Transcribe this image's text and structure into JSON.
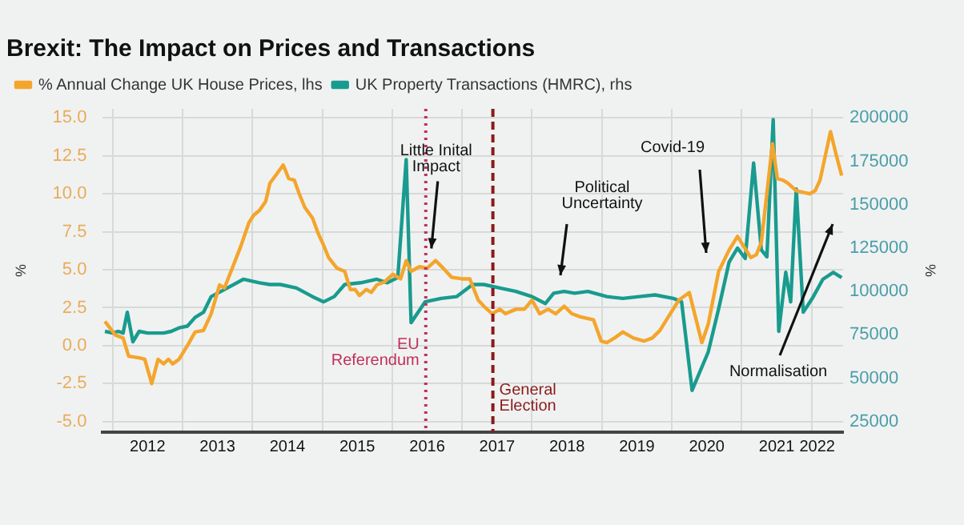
{
  "chart_data": {
    "type": "line",
    "title": "Brexit: The Impact on Prices and Transactions",
    "ylabel": "%",
    "y2label": "%",
    "legend": "top left",
    "grid": true,
    "marker": "none",
    "line_style": "solid",
    "xlim": [
      2011.86,
      2022.45
    ],
    "xticks": [
      {
        "value": 2012,
        "label": null
      },
      {
        "value": 2012.5,
        "label": "2012"
      },
      {
        "value": 2013,
        "label": null
      },
      {
        "value": 2013.5,
        "label": "2013"
      },
      {
        "value": 2014,
        "label": null
      },
      {
        "value": 2014.5,
        "label": "2014"
      },
      {
        "value": 2015,
        "label": null
      },
      {
        "value": 2015.5,
        "label": "2015"
      },
      {
        "value": 2016,
        "label": null
      },
      {
        "value": 2016.5,
        "label": "2016"
      },
      {
        "value": 2017,
        "label": null
      },
      {
        "value": 2017.5,
        "label": "2017"
      },
      {
        "value": 2018,
        "label": null
      },
      {
        "value": 2018.5,
        "label": "2018"
      },
      {
        "value": 2019,
        "label": null
      },
      {
        "value": 2019.5,
        "label": "2019"
      },
      {
        "value": 2020,
        "label": null
      },
      {
        "value": 2020.5,
        "label": "2020"
      },
      {
        "value": 2021,
        "label": null
      },
      {
        "value": 2021.5,
        "label": "2021"
      },
      {
        "value": 2022,
        "label": null
      },
      {
        "value": 2022.08,
        "label": "2022"
      }
    ],
    "ylim": [
      -5.7,
      15.6
    ],
    "yticks": [
      {
        "value": -5,
        "label": "-5.0"
      },
      {
        "value": -2.5,
        "label": "-2.5"
      },
      {
        "value": 0,
        "label": "0.0"
      },
      {
        "value": 2.5,
        "label": "2.5"
      },
      {
        "value": 5,
        "label": "5.0"
      },
      {
        "value": 7.5,
        "label": "7.5"
      },
      {
        "value": 10,
        "label": "10.0"
      },
      {
        "value": 12.5,
        "label": "12.5"
      },
      {
        "value": 15,
        "label": "15.0"
      }
    ],
    "y2lim": [
      18875,
      205250
    ],
    "y2ticks": [
      25000,
      50000,
      75000,
      100000,
      125000,
      150000,
      175000,
      200000
    ],
    "series": [
      {
        "name": "% Annual Change UK House Prices, lhs",
        "color": "#f4a52c",
        "axis": "y",
        "x": [
          2011.89,
          2012.04,
          2012.15,
          2012.23,
          2012.38,
          2012.46,
          2012.56,
          2012.65,
          2012.73,
          2012.8,
          2012.86,
          2012.95,
          2013.07,
          2013.18,
          2013.3,
          2013.41,
          2013.53,
          2013.6,
          2013.72,
          2013.83,
          2013.95,
          2014.02,
          2014.1,
          2014.19,
          2014.25,
          2014.33,
          2014.44,
          2014.52,
          2014.6,
          2014.67,
          2014.75,
          2014.86,
          2014.94,
          2015.02,
          2015.09,
          2015.21,
          2015.32,
          2015.4,
          2015.47,
          2015.53,
          2015.63,
          2015.7,
          2015.78,
          2015.89,
          2016.01,
          2016.12,
          2016.2,
          2016.27,
          2016.39,
          2016.5,
          2016.62,
          2016.73,
          2016.85,
          2017,
          2017.11,
          2017.23,
          2017.31,
          2017.43,
          2017.54,
          2017.62,
          2017.77,
          2017.89,
          2018,
          2018.11,
          2018.23,
          2018.34,
          2018.46,
          2018.57,
          2018.69,
          2018.88,
          2018.99,
          2019.07,
          2019.18,
          2019.3,
          2019.45,
          2019.6,
          2019.72,
          2019.83,
          2019.95,
          2020.1,
          2020.25,
          2020.43,
          2020.52,
          2020.67,
          2020.82,
          2020.94,
          2021.02,
          2021.13,
          2021.21,
          2021.28,
          2021.44,
          2021.51,
          2021.59,
          2021.66,
          2021.78,
          2021.97,
          2022.05,
          2022.12,
          2022.2,
          2022.27,
          2022.35,
          2022.43
        ],
        "values": [
          1.6,
          0.7,
          0.5,
          -0.7,
          -0.8,
          -0.9,
          -2.5,
          -0.9,
          -1.2,
          -0.9,
          -1.2,
          -0.9,
          0.0,
          0.9,
          1.0,
          2.1,
          4.0,
          3.8,
          5.2,
          6.5,
          8.1,
          8.6,
          8.9,
          9.5,
          10.7,
          11.2,
          11.9,
          11.0,
          10.9,
          10.0,
          9.1,
          8.4,
          7.4,
          6.6,
          5.8,
          5.1,
          4.9,
          3.7,
          3.7,
          3.3,
          3.7,
          3.5,
          4.0,
          4.2,
          4.7,
          4.4,
          5.6,
          4.9,
          5.2,
          5.1,
          5.6,
          5.1,
          4.5,
          4.4,
          4.4,
          3.0,
          2.6,
          2.1,
          2.4,
          2.1,
          2.4,
          2.4,
          3.0,
          2.1,
          2.4,
          2.1,
          2.6,
          2.1,
          1.9,
          1.7,
          0.3,
          0.2,
          0.5,
          0.9,
          0.5,
          0.3,
          0.5,
          1.0,
          1.9,
          3.0,
          3.5,
          0.2,
          1.4,
          4.9,
          6.3,
          7.2,
          6.6,
          5.8,
          6.0,
          6.8,
          13.3,
          11.0,
          10.9,
          10.7,
          10.2,
          10.0,
          10.2,
          10.9,
          12.6,
          14.1,
          12.6,
          11.2
        ]
      },
      {
        "name": "UK Property Transactions (HMRC), rhs",
        "color": "#199b8f",
        "axis": "y2",
        "x": [
          2011.89,
          2012,
          2012.08,
          2012.15,
          2012.21,
          2012.29,
          2012.38,
          2012.5,
          2012.73,
          2012.84,
          2012.95,
          2013.07,
          2013.18,
          2013.3,
          2013.41,
          2013.64,
          2013.87,
          2014.1,
          2014.25,
          2014.4,
          2014.63,
          2014.86,
          2015.02,
          2015.17,
          2015.32,
          2015.55,
          2015.78,
          2015.93,
          2016.08,
          2016.2,
          2016.27,
          2016.47,
          2016.7,
          2016.92,
          2017.15,
          2017.31,
          2017.54,
          2017.77,
          2018,
          2018.19,
          2018.31,
          2018.46,
          2018.61,
          2018.8,
          2019.07,
          2019.3,
          2019.53,
          2019.76,
          2020.02,
          2020.14,
          2020.29,
          2020.52,
          2020.67,
          2020.82,
          2020.94,
          2021.05,
          2021.17,
          2021.28,
          2021.36,
          2021.45,
          2021.53,
          2021.63,
          2021.7,
          2021.78,
          2021.88,
          2022.01,
          2022.16,
          2022.31,
          2022.43
        ],
        "values": [
          77000,
          76000,
          77000,
          76000,
          88000,
          71000,
          77000,
          76000,
          76000,
          77000,
          79000,
          80000,
          85000,
          88000,
          97000,
          102000,
          107000,
          105000,
          104000,
          104000,
          102000,
          97000,
          94000,
          97000,
          104000,
          105000,
          107000,
          105000,
          108000,
          176000,
          82000,
          94000,
          96000,
          97000,
          104000,
          104000,
          102000,
          100000,
          97000,
          93000,
          99000,
          100000,
          99000,
          100000,
          97000,
          96000,
          97000,
          98000,
          96000,
          94000,
          43000,
          65000,
          90000,
          117000,
          125000,
          119000,
          174000,
          124000,
          120000,
          199000,
          77000,
          111000,
          94000,
          159000,
          88000,
          96000,
          107000,
          111000,
          108000
        ]
      }
    ],
    "ref_lines": [
      {
        "axis": "x",
        "value": 2016.48,
        "label": "EU Referendum",
        "color": "#c0305a",
        "line_style": "dotted"
      },
      {
        "axis": "x",
        "value": 2017.44,
        "label": "General Election",
        "color": "#8b1a1a",
        "line_style": "dashed"
      }
    ],
    "annotations": [
      {
        "text": "Little Inital Impact",
        "x": 2016.56,
        "y": 6.4
      },
      "Political Uncertainty",
      "Covid-19",
      "Normalisation"
    ]
  }
}
